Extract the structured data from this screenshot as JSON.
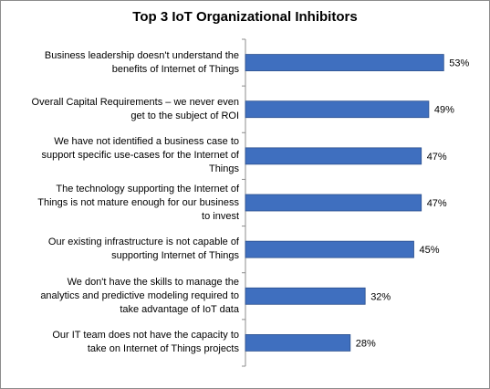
{
  "chart_data": {
    "type": "bar",
    "orientation": "horizontal",
    "title": "Top 3 IoT Organizational Inhibitors",
    "categories": [
      "Business leadership doesn't understand the benefits of Internet of Things",
      "Overall Capital Requirements – we never even get to the subject of ROI",
      "We have not identified a business case to support specific use-cases for the Internet of Things",
      "The technology supporting the Internet of Things is not mature enough for our business to invest",
      "Our existing infrastructure is not capable of supporting Internet of Things",
      "We don't have the skills to manage the analytics and predictive modeling required to take advantage of IoT data",
      "Our IT team does not have the capacity to take on Internet of Things projects"
    ],
    "category_lines": [
      [
        "Business leadership doesn't understand the",
        "benefits of Internet of Things"
      ],
      [
        "Overall Capital Requirements – we never even",
        "get to the subject of ROI"
      ],
      [
        "We have not identified a business case to",
        "support specific use-cases for the Internet of",
        "Things"
      ],
      [
        "The technology supporting the Internet of",
        "Things is not mature enough for our business",
        "to invest"
      ],
      [
        "Our existing infrastructure is not capable of",
        "supporting Internet of Things"
      ],
      [
        "We don't have the skills to manage the",
        "analytics and predictive modeling required to",
        "take advantage of IoT data"
      ],
      [
        "Our IT team does not have the capacity to",
        "take on Internet of Things projects"
      ]
    ],
    "values": [
      53,
      49,
      47,
      47,
      45,
      32,
      28
    ],
    "data_labels": [
      "53%",
      "49%",
      "47%",
      "47%",
      "45%",
      "32%",
      "28%"
    ],
    "xlim": [
      0,
      60
    ],
    "bar_color": "#3f6fbf",
    "bar_edge_color": "#2b4f8c",
    "axis_color": "#8c8c8c",
    "grid": false,
    "legend": "none"
  }
}
